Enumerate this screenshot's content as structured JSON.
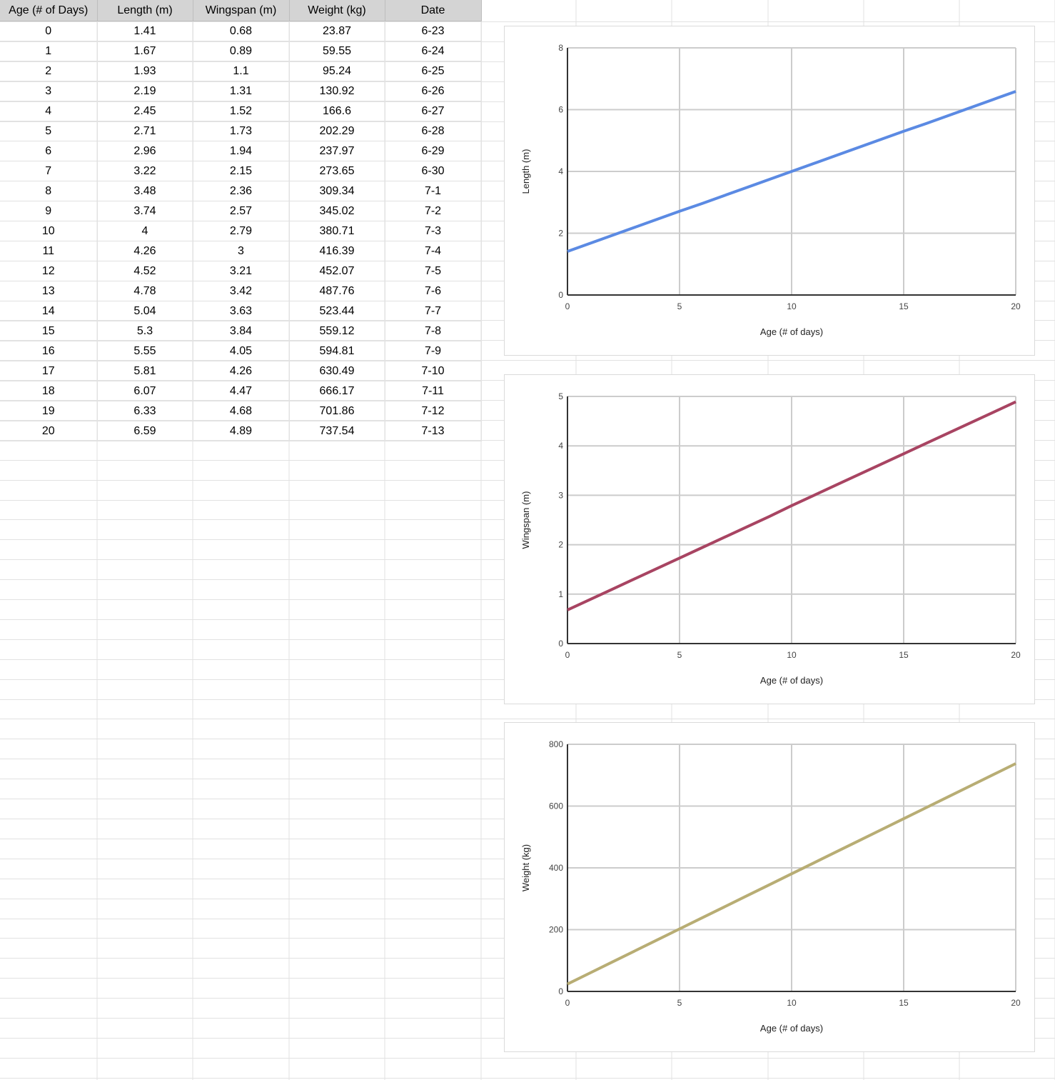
{
  "table": {
    "headers": [
      "Age (# of Days)",
      "Length (m)",
      "Wingspan (m)",
      "Weight (kg)",
      "Date"
    ],
    "rows": [
      [
        "0",
        "1.41",
        "0.68",
        "23.87",
        "6-23"
      ],
      [
        "1",
        "1.67",
        "0.89",
        "59.55",
        "6-24"
      ],
      [
        "2",
        "1.93",
        "1.1",
        "95.24",
        "6-25"
      ],
      [
        "3",
        "2.19",
        "1.31",
        "130.92",
        "6-26"
      ],
      [
        "4",
        "2.45",
        "1.52",
        "166.6",
        "6-27"
      ],
      [
        "5",
        "2.71",
        "1.73",
        "202.29",
        "6-28"
      ],
      [
        "6",
        "2.96",
        "1.94",
        "237.97",
        "6-29"
      ],
      [
        "7",
        "3.22",
        "2.15",
        "273.65",
        "6-30"
      ],
      [
        "8",
        "3.48",
        "2.36",
        "309.34",
        "7-1"
      ],
      [
        "9",
        "3.74",
        "2.57",
        "345.02",
        "7-2"
      ],
      [
        "10",
        "4",
        "2.79",
        "380.71",
        "7-3"
      ],
      [
        "11",
        "4.26",
        "3",
        "416.39",
        "7-4"
      ],
      [
        "12",
        "4.52",
        "3.21",
        "452.07",
        "7-5"
      ],
      [
        "13",
        "4.78",
        "3.42",
        "487.76",
        "7-6"
      ],
      [
        "14",
        "5.04",
        "3.63",
        "523.44",
        "7-7"
      ],
      [
        "15",
        "5.3",
        "3.84",
        "559.12",
        "7-8"
      ],
      [
        "16",
        "5.55",
        "4.05",
        "594.81",
        "7-9"
      ],
      [
        "17",
        "5.81",
        "4.26",
        "630.49",
        "7-10"
      ],
      [
        "18",
        "6.07",
        "4.47",
        "666.17",
        "7-11"
      ],
      [
        "19",
        "6.33",
        "4.68",
        "701.86",
        "7-12"
      ],
      [
        "20",
        "6.59",
        "4.89",
        "737.54",
        "7-13"
      ]
    ]
  },
  "chart_data": [
    {
      "type": "line",
      "title": "",
      "xlabel": "Age (# of days)",
      "ylabel": "Length (m)",
      "xlim": [
        0,
        20
      ],
      "ylim": [
        0,
        8
      ],
      "xticks": [
        0,
        5,
        10,
        15,
        20
      ],
      "yticks": [
        0,
        2,
        4,
        6,
        8
      ],
      "grid": true,
      "legend": "none",
      "color": "#5b8ae3",
      "x": [
        0,
        1,
        2,
        3,
        4,
        5,
        6,
        7,
        8,
        9,
        10,
        11,
        12,
        13,
        14,
        15,
        16,
        17,
        18,
        19,
        20
      ],
      "y": [
        1.41,
        1.67,
        1.93,
        2.19,
        2.45,
        2.71,
        2.96,
        3.22,
        3.48,
        3.74,
        4,
        4.26,
        4.52,
        4.78,
        5.04,
        5.3,
        5.55,
        5.81,
        6.07,
        6.33,
        6.59
      ]
    },
    {
      "type": "line",
      "title": "",
      "xlabel": "Age (# of days)",
      "ylabel": "Wingspan (m)",
      "xlim": [
        0,
        20
      ],
      "ylim": [
        0,
        5
      ],
      "xticks": [
        0,
        5,
        10,
        15,
        20
      ],
      "yticks": [
        0,
        1,
        2,
        3,
        4,
        5
      ],
      "grid": true,
      "legend": "none",
      "color": "#a84462",
      "x": [
        0,
        1,
        2,
        3,
        4,
        5,
        6,
        7,
        8,
        9,
        10,
        11,
        12,
        13,
        14,
        15,
        16,
        17,
        18,
        19,
        20
      ],
      "y": [
        0.68,
        0.89,
        1.1,
        1.31,
        1.52,
        1.73,
        1.94,
        2.15,
        2.36,
        2.57,
        2.79,
        3,
        3.21,
        3.42,
        3.63,
        3.84,
        4.05,
        4.26,
        4.47,
        4.68,
        4.89
      ]
    },
    {
      "type": "line",
      "title": "",
      "xlabel": "Age (# of days)",
      "ylabel": "Weight (kg)",
      "xlim": [
        0,
        20
      ],
      "ylim": [
        0,
        800
      ],
      "xticks": [
        0,
        5,
        10,
        15,
        20
      ],
      "yticks": [
        0,
        200,
        400,
        600,
        800
      ],
      "grid": true,
      "legend": "none",
      "color": "#b8ad74",
      "x": [
        0,
        1,
        2,
        3,
        4,
        5,
        6,
        7,
        8,
        9,
        10,
        11,
        12,
        13,
        14,
        15,
        16,
        17,
        18,
        19,
        20
      ],
      "y": [
        23.87,
        59.55,
        95.24,
        130.92,
        166.6,
        202.29,
        237.97,
        273.65,
        309.34,
        345.02,
        380.71,
        416.39,
        452.07,
        487.76,
        523.44,
        559.12,
        594.81,
        630.49,
        666.17,
        701.86,
        737.54
      ]
    }
  ]
}
